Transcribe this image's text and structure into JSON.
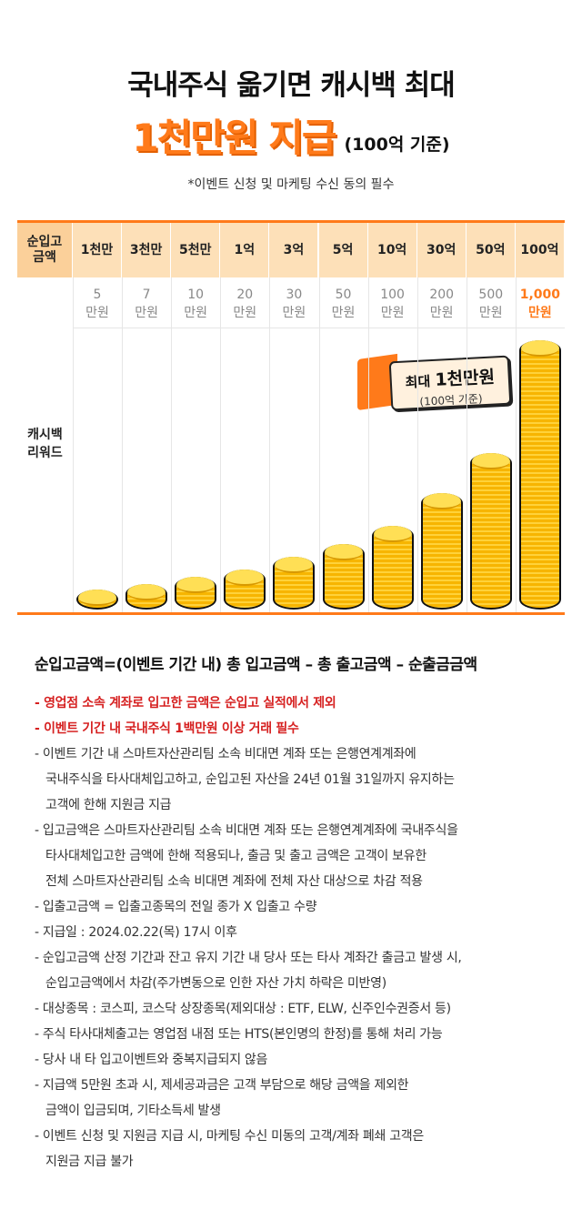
{
  "header": {
    "line1": "국내주식 옮기면 캐시백 최대",
    "line2": "1천만원 지급",
    "line2_sub": "(100억 기준)",
    "note": "*이벤트 신청 및 마케팅 수신 동의 필수"
  },
  "table": {
    "header_label": "순입고 금액",
    "row_label": "캐시백 리워드",
    "columns": [
      {
        "tier": "1천만",
        "reward": "5 만원"
      },
      {
        "tier": "3천만",
        "reward": "7 만원"
      },
      {
        "tier": "5천만",
        "reward": "10 만원"
      },
      {
        "tier": "1억",
        "reward": "20 만원"
      },
      {
        "tier": "3억",
        "reward": "30 만원"
      },
      {
        "tier": "5억",
        "reward": "50 만원"
      },
      {
        "tier": "10억",
        "reward": "100 만원"
      },
      {
        "tier": "30억",
        "reward": "200 만원"
      },
      {
        "tier": "50억",
        "reward": "500 만원"
      },
      {
        "tier": "100억",
        "reward": "1,000 만원"
      }
    ],
    "reward_values_manwon": [
      5,
      7,
      10,
      20,
      30,
      50,
      100,
      200,
      500,
      1000
    ],
    "badge": {
      "line1_prefix": "최대 ",
      "line1_strong": "1천만원",
      "line2": "(100억 기준)"
    },
    "accent_color": "#ff7a1a",
    "coin_icon": "coin-stack-icon"
  },
  "notes": {
    "title": "순입고금액=(이벤트 기간 내) 총 입고금액 – 총 출고금액 – 순출금금액",
    "items": [
      {
        "red": true,
        "lines": [
          "- 영업점 소속 계좌로 입고한 금액은 순입고 실적에서 제외"
        ]
      },
      {
        "red": true,
        "lines": [
          "- 이벤트 기간 내 국내주식 1백만원 이상 거래 필수"
        ]
      },
      {
        "red": false,
        "lines": [
          "- 이벤트 기간 내 스마트자산관리팀 소속 비대면 계좌 또는 은행연계계좌에",
          "국내주식을 타사대체입고하고, 순입고된 자산을 24년 01월 31일까지 유지하는",
          "고객에 한해 지원금 지급"
        ]
      },
      {
        "red": false,
        "lines": [
          "- 입고금액은 스마트자산관리팀 소속 비대면 계좌 또는 은행연계계좌에 국내주식을",
          "타사대체입고한 금액에 한해 적용되나, 출금 및 출고 금액은 고객이 보유한",
          "전체 스마트자산관리팀 소속 비대면 계좌에 전체 자산 대상으로 차감 적용"
        ]
      },
      {
        "red": false,
        "lines": [
          "- 입출고금액 = 입출고종목의 전일 종가 X 입출고 수량"
        ]
      },
      {
        "red": false,
        "lines": [
          "- 지급일 : 2024.02.22(목) 17시 이후"
        ]
      },
      {
        "red": false,
        "lines": [
          "- 순입고금액 산정 기간과 잔고 유지 기간 내 당사 또는 타사 계좌간 출금고 발생 시,",
          "순입고금액에서 차감(주가변동으로 인한 자산 가치 하락은 미반영)"
        ]
      },
      {
        "red": false,
        "lines": [
          "- 대상종목 : 코스피, 코스닥 상장종목(제외대상 : ETF, ELW, 신주인수권증서 등)"
        ]
      },
      {
        "red": false,
        "lines": [
          "- 주식 타사대체출고는 영업점 내점 또는 HTS(본인명의 한정)를 통해 처리 가능"
        ]
      },
      {
        "red": false,
        "lines": [
          "- 당사 내 타 입고이벤트와 중복지급되지 않음"
        ]
      },
      {
        "red": false,
        "lines": [
          "- 지급액 5만원 초과 시, 제세공과금은 고객 부담으로 해당 금액을 제외한",
          "금액이 입금되며, 기타소득세 발생"
        ]
      },
      {
        "red": false,
        "lines": [
          "- 이벤트 신청 및 지원금 지급 시, 마케팅 수신 미동의 고객/계좌 폐쇄 고객은",
          "지원금 지급 불가"
        ]
      }
    ]
  }
}
